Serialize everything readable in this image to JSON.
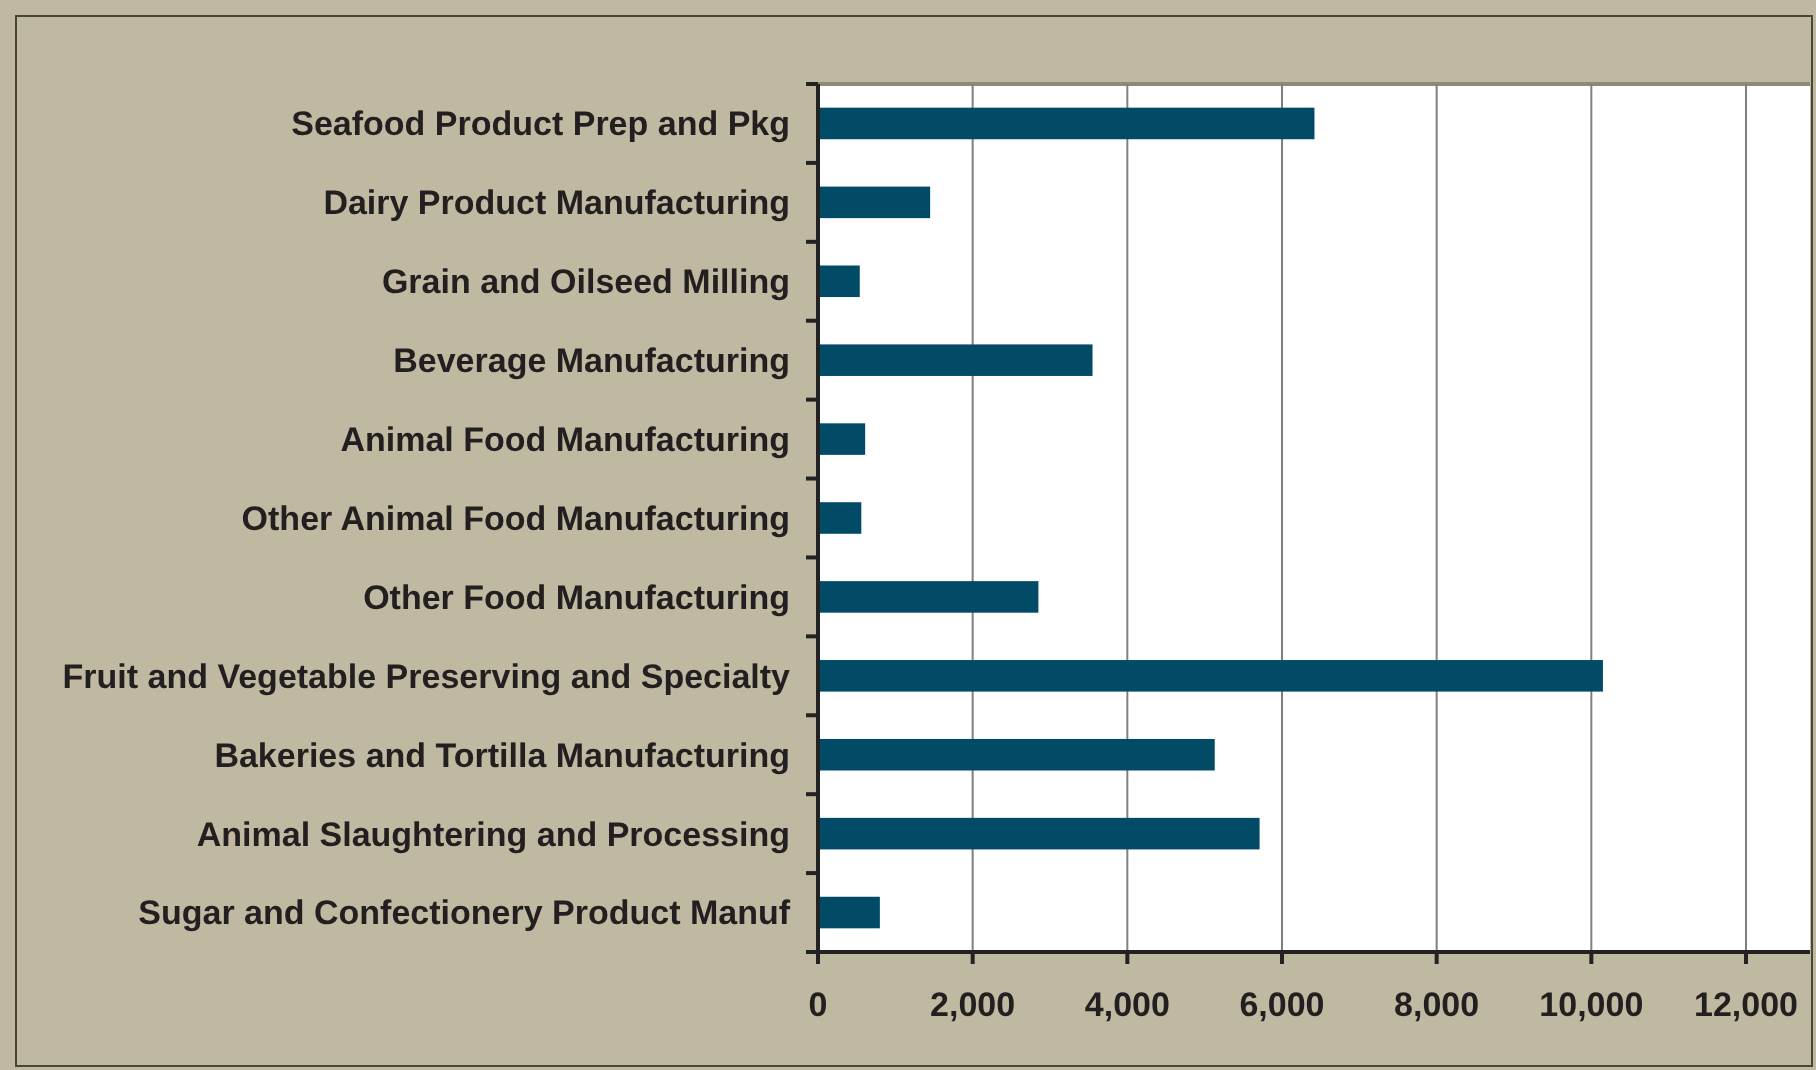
{
  "chart_data": {
    "type": "bar",
    "orientation": "horizontal",
    "categories": [
      "Seafood Product Prep and Pkg",
      "Dairy Product Manufacturing",
      "Grain and Oilseed Milling",
      "Beverage Manufacturing",
      "Animal Food Manufacturing",
      "Other Animal Food Manufacturing",
      "Other Food Manufacturing",
      "Fruit and Vegetable Preserving and Specialty",
      "Bakeries and Tortilla Manufacturing",
      "Animal Slaughtering and Processing",
      "Sugar and Confectionery Product Manuf"
    ],
    "values": [
      6420,
      1450,
      540,
      3550,
      610,
      560,
      2850,
      10150,
      5130,
      5710,
      800
    ],
    "color": "#024b66",
    "xlim": [
      0,
      12000
    ],
    "xticks": [
      {
        "value": 0,
        "label": "0"
      },
      {
        "value": 2000,
        "label": "2,000"
      },
      {
        "value": 4000,
        "label": "4,000"
      },
      {
        "value": 6000,
        "label": "6,000"
      },
      {
        "value": 8000,
        "label": "8,000"
      },
      {
        "value": 10000,
        "label": "10,000"
      },
      {
        "value": 12000,
        "label": "12,000"
      }
    ],
    "grid": "x"
  }
}
